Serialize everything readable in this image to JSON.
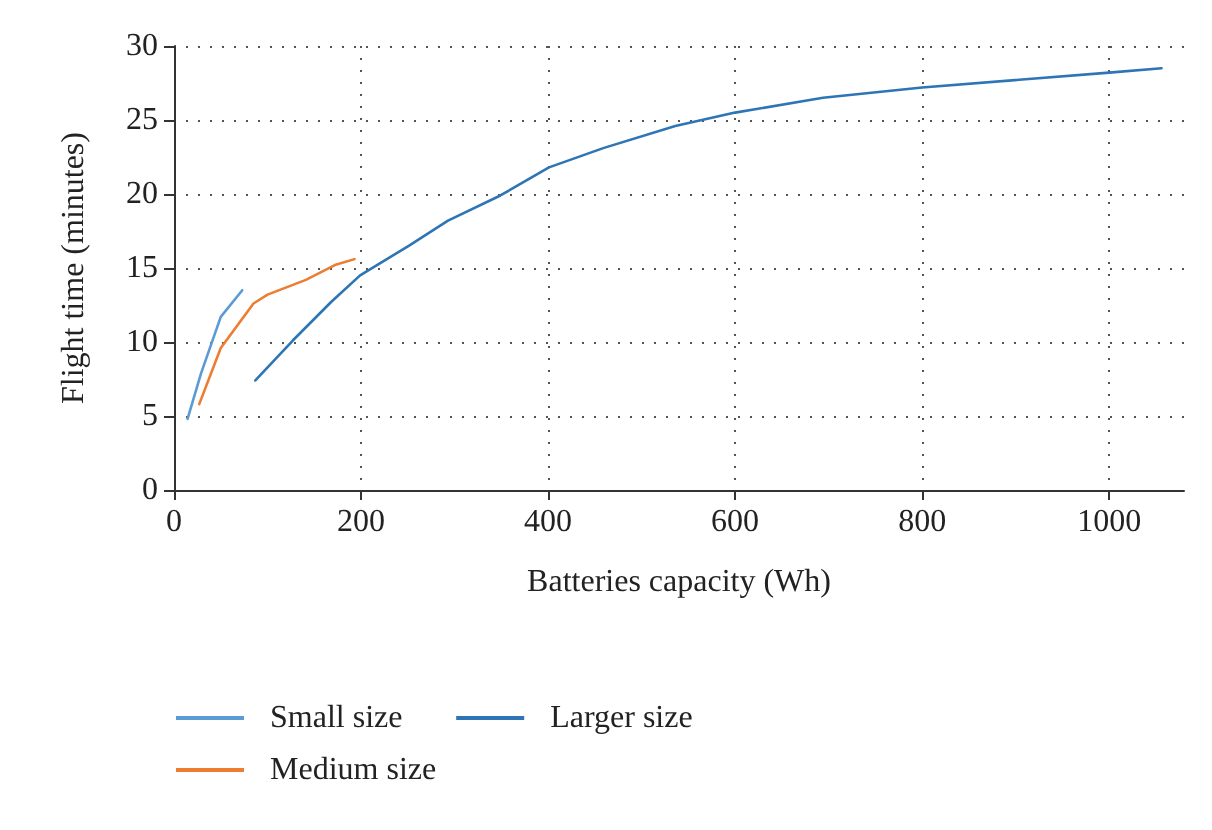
{
  "chart_data": {
    "type": "line",
    "xlabel": "Batteries capacity (Wh)",
    "ylabel": "Flight time (minutes)",
    "xlim": [
      0,
      1080
    ],
    "xticks": [
      0,
      200,
      400,
      600,
      800,
      1000
    ],
    "ylim": [
      0,
      30
    ],
    "yticks": [
      0,
      5,
      10,
      15,
      20,
      25,
      30
    ],
    "grid": true,
    "legend": "bottom left",
    "marker": "none",
    "line_style": "solid",
    "series": [
      {
        "name": "Small size",
        "color": "#5b9bd5",
        "x": [
          14.5,
          29,
          50,
          73
        ],
        "values": [
          4.8,
          7.9,
          11.7,
          13.5
        ]
      },
      {
        "name": "Medium size",
        "color": "#ed7d31",
        "x": [
          27,
          50,
          85,
          100,
          141,
          172,
          193
        ],
        "values": [
          5.8,
          9.6,
          12.6,
          13.2,
          14.2,
          15.2,
          15.6
        ]
      },
      {
        "name": "Larger size",
        "color": "#2e75b6",
        "x": [
          87,
          127,
          168,
          199,
          251,
          293,
          349,
          401,
          459,
          536,
          600,
          694,
          800,
          1000,
          1056
        ],
        "values": [
          7.4,
          10.1,
          12.7,
          14.5,
          16.5,
          18.2,
          19.9,
          21.8,
          23.1,
          24.6,
          25.5,
          26.5,
          27.2,
          28.2,
          28.5
        ]
      }
    ]
  }
}
